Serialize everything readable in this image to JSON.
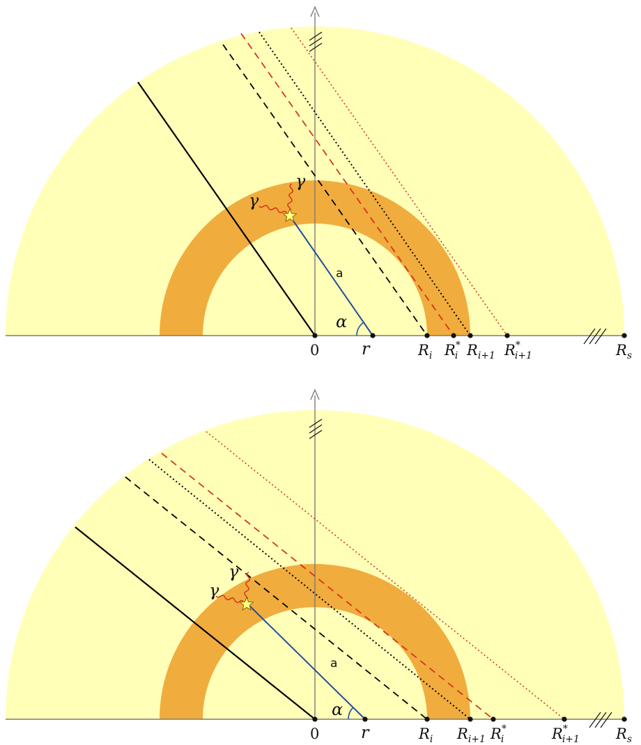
{
  "colors": {
    "sphere": "#ffffb8",
    "shell": "#f1ac3e",
    "axis": "#7a7a7a",
    "radius_line": "#1f4e96",
    "photon": "#d8321e",
    "red_ray": "#d8321e",
    "black_ray": "#000000",
    "star_fill": "#ffff80"
  },
  "icons": {
    "emission_point": "star-icon",
    "photon": "wavy-arrow-icon"
  },
  "panels": [
    {
      "id": "top",
      "axis_labels": {
        "origin": "0",
        "r": "r",
        "Ri": {
          "base": "R",
          "sub": "i",
          "sup": ""
        },
        "Ristar": {
          "base": "R",
          "sub": "i",
          "sup": "*"
        },
        "Ri1": {
          "base": "R",
          "sub": "i+1",
          "sup": ""
        },
        "Ri1star": {
          "base": "R",
          "sub": "i+1",
          "sup": "*"
        },
        "Rs": {
          "base": "R",
          "sub": "s",
          "sup": ""
        }
      },
      "a_label": "a",
      "alpha_label": "α",
      "gamma_labels": [
        "γ",
        "γ"
      ]
    },
    {
      "id": "bottom",
      "axis_labels": {
        "origin": "0",
        "r": "r",
        "Ri": {
          "base": "R",
          "sub": "i",
          "sup": ""
        },
        "Ri1": {
          "base": "R",
          "sub": "i+1",
          "sup": ""
        },
        "Ristar": {
          "base": "R",
          "sub": "i",
          "sup": "*"
        },
        "Ri1star": {
          "base": "R",
          "sub": "i+1",
          "sup": "*"
        },
        "Rs": {
          "base": "R",
          "sub": "s",
          "sup": ""
        }
      },
      "a_label": "a",
      "alpha_label": "α",
      "gamma_labels": [
        "γ",
        "γ"
      ]
    }
  ]
}
